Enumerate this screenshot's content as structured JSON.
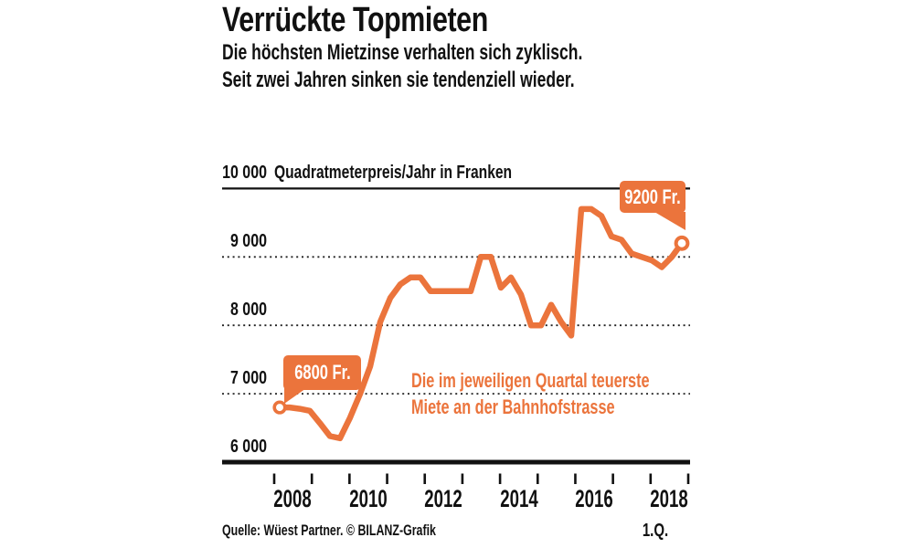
{
  "header": {
    "title": "Verrückte Topmieten",
    "subtitle_line1": "Die höchsten Mietzinse verhalten sich zyklisch.",
    "subtitle_line2": "Seit zwei Jahren sinken sie tendenziell wieder."
  },
  "annotation": {
    "line1": "Die im jeweiligen Quartal teuerste",
    "line2": "Miete an der Bahnhofstrasse"
  },
  "badges": {
    "start": "6800 Fr.",
    "end": "9200 Fr."
  },
  "source": "Quelle: Wüest Partner. © BILANZ-Grafik",
  "colors": {
    "accent": "#EB743C",
    "ink": "#111111"
  },
  "chart_data": {
    "type": "line",
    "title": "Verrückte Topmieten",
    "series_name": "Die im jeweiligen Quartal teuerste Miete an der Bahnhofstrasse",
    "ylabel": "Quadratmeterpreis/Jahr in Franken",
    "unit": "Franken",
    "frequency": "quarterly",
    "start_period": "2008 Q1",
    "end_period": "2018 Q1",
    "values": [
      6800,
      6800,
      6780,
      6750,
      6570,
      6380,
      6350,
      6650,
      7000,
      7400,
      8050,
      8400,
      8600,
      8700,
      8700,
      8500,
      8500,
      8500,
      8500,
      8500,
      9000,
      9000,
      8550,
      8700,
      8450,
      8000,
      8000,
      8300,
      8050,
      7850,
      9700,
      9700,
      9600,
      9300,
      9250,
      9050,
      9000,
      8950,
      8850,
      9000,
      9200
    ],
    "first_value_label": "6800 Fr.",
    "last_value_label": "9200 Fr.",
    "ylim": [
      6000,
      10000
    ],
    "y_gridlines": [
      10000,
      9000,
      8000,
      7000,
      6000
    ],
    "y_tick_labels": [
      "10 000",
      "9 000",
      "8 000",
      "7 000",
      "6 000"
    ],
    "x_tick_count": 12,
    "x_labels": [
      "2008",
      "2010",
      "2012",
      "2014",
      "2016",
      "2018"
    ],
    "x_sub_label": "1.Q.",
    "grid": "dotted horizontal, solid top line, thick solid baseline",
    "legend": "none",
    "line_color": "#EB743C"
  }
}
